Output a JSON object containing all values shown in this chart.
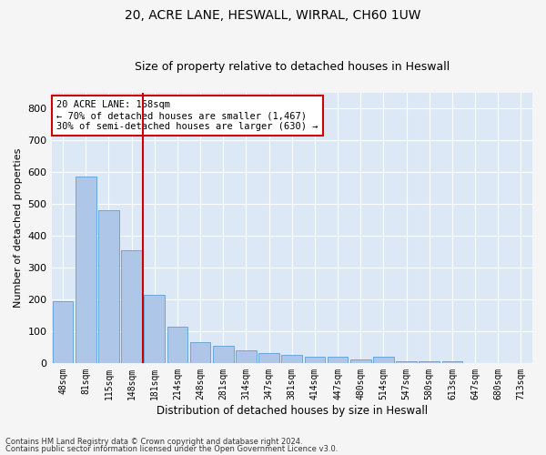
{
  "title_line1": "20, ACRE LANE, HESWALL, WIRRAL, CH60 1UW",
  "title_line2": "Size of property relative to detached houses in Heswall",
  "xlabel": "Distribution of detached houses by size in Heswall",
  "ylabel": "Number of detached properties",
  "footnote1": "Contains HM Land Registry data © Crown copyright and database right 2024.",
  "footnote2": "Contains public sector information licensed under the Open Government Licence v3.0.",
  "bar_labels": [
    "48sqm",
    "81sqm",
    "115sqm",
    "148sqm",
    "181sqm",
    "214sqm",
    "248sqm",
    "281sqm",
    "314sqm",
    "347sqm",
    "381sqm",
    "414sqm",
    "447sqm",
    "480sqm",
    "514sqm",
    "547sqm",
    "580sqm",
    "613sqm",
    "647sqm",
    "680sqm",
    "713sqm"
  ],
  "bar_values": [
    195,
    585,
    480,
    355,
    215,
    115,
    65,
    55,
    40,
    30,
    25,
    20,
    20,
    10,
    20,
    5,
    5,
    5,
    0,
    0,
    0
  ],
  "bar_color": "#aec6e8",
  "bar_edge_color": "#5a9fd4",
  "annotation_line1": "20 ACRE LANE: 168sqm",
  "annotation_line2": "← 70% of detached houses are smaller (1,467)",
  "annotation_line3": "30% of semi-detached houses are larger (630) →",
  "vline_x": 3.5,
  "vline_color": "#cc0000",
  "annotation_box_facecolor": "#ffffff",
  "annotation_box_edgecolor": "#cc0000",
  "ylim": [
    0,
    850
  ],
  "yticks": [
    0,
    100,
    200,
    300,
    400,
    500,
    600,
    700,
    800
  ],
  "background_color": "#dce8f5",
  "grid_color": "#ffffff",
  "title_fontsize": 10,
  "subtitle_fontsize": 9,
  "fig_facecolor": "#f5f5f5"
}
